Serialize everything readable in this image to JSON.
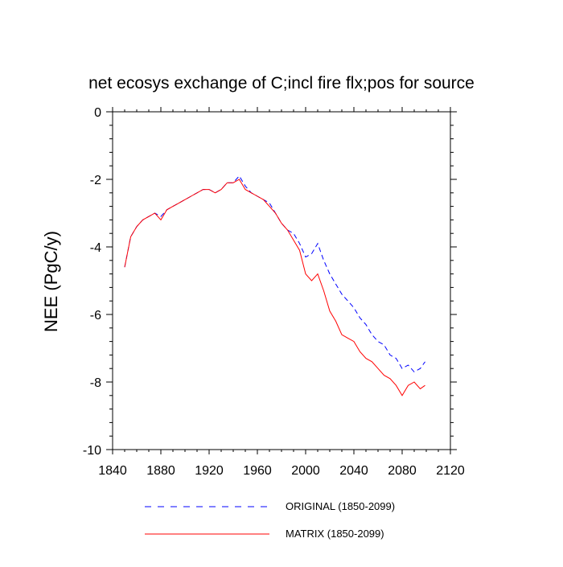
{
  "chart_data": {
    "type": "line",
    "title": "net ecosys exchange of C;incl fire flx;pos for source",
    "xlabel": "",
    "ylabel": "NEE  (PgC/y)",
    "xlim": [
      1840,
      2120
    ],
    "ylim": [
      -10,
      0
    ],
    "x_ticks": [
      1840,
      1880,
      1920,
      1960,
      2000,
      2040,
      2080,
      2120
    ],
    "x_tick_labels": [
      "1840",
      "1880",
      "1920",
      "1960",
      "2000",
      "2040",
      "2080",
      "2120"
    ],
    "y_ticks": [
      0,
      -2,
      -4,
      -6,
      -8,
      -10
    ],
    "y_tick_labels": [
      "0",
      "-2",
      "-4",
      "-6",
      "-8",
      "-10"
    ],
    "legend_position": "bottom",
    "x": [
      1850,
      1855,
      1860,
      1865,
      1870,
      1875,
      1880,
      1885,
      1890,
      1895,
      1900,
      1905,
      1910,
      1915,
      1920,
      1925,
      1930,
      1935,
      1940,
      1945,
      1950,
      1955,
      1960,
      1965,
      1970,
      1975,
      1980,
      1985,
      1990,
      1995,
      2000,
      2005,
      2010,
      2015,
      2020,
      2025,
      2030,
      2035,
      2040,
      2045,
      2050,
      2055,
      2060,
      2065,
      2070,
      2075,
      2080,
      2085,
      2090,
      2095,
      2099
    ],
    "series": [
      {
        "name": "ORIGINAL (1850-2099)",
        "color": "#0000ff",
        "dash": "dashed",
        "values": [
          -4.6,
          -3.7,
          -3.4,
          -3.2,
          -3.1,
          -3.0,
          -3.1,
          -2.9,
          -2.8,
          -2.7,
          -2.6,
          -2.5,
          -2.4,
          -2.3,
          -2.3,
          -2.4,
          -2.3,
          -2.1,
          -2.1,
          -1.9,
          -2.2,
          -2.4,
          -2.5,
          -2.6,
          -2.7,
          -3.0,
          -3.3,
          -3.5,
          -3.6,
          -3.9,
          -4.3,
          -4.2,
          -3.9,
          -4.4,
          -4.8,
          -5.1,
          -5.4,
          -5.6,
          -5.8,
          -6.1,
          -6.3,
          -6.6,
          -6.8,
          -6.9,
          -7.2,
          -7.3,
          -7.6,
          -7.5,
          -7.7,
          -7.6,
          -7.4
        ]
      },
      {
        "name": "MATRIX (1850-2099)",
        "color": "#ff0000",
        "dash": "solid",
        "values": [
          -4.6,
          -3.7,
          -3.4,
          -3.2,
          -3.1,
          -3.0,
          -3.2,
          -2.9,
          -2.8,
          -2.7,
          -2.6,
          -2.5,
          -2.4,
          -2.3,
          -2.3,
          -2.4,
          -2.3,
          -2.1,
          -2.1,
          -2.0,
          -2.3,
          -2.4,
          -2.5,
          -2.6,
          -2.8,
          -3.0,
          -3.3,
          -3.5,
          -3.8,
          -4.1,
          -4.8,
          -5.0,
          -4.8,
          -5.3,
          -5.9,
          -6.2,
          -6.6,
          -6.7,
          -6.8,
          -7.1,
          -7.3,
          -7.4,
          -7.6,
          -7.8,
          -7.9,
          -8.1,
          -8.4,
          -8.1,
          -8.0,
          -8.2,
          -8.1
        ]
      }
    ]
  }
}
